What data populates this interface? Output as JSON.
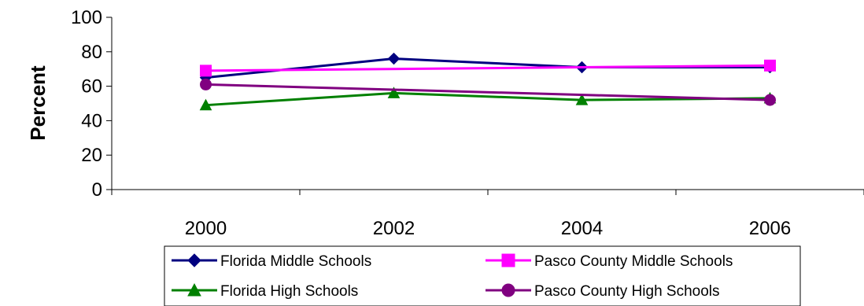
{
  "chart_data": {
    "type": "line",
    "title": "",
    "xlabel": "",
    "ylabel": "Percent",
    "categories": [
      "2000",
      "2002",
      "2004",
      "2006"
    ],
    "ylim": [
      0,
      100
    ],
    "yticks": [
      0,
      20,
      40,
      60,
      80,
      100
    ],
    "grid": false,
    "legend_position": "bottom",
    "series": [
      {
        "name": "Florida Middle Schools",
        "values": [
          65,
          76,
          71,
          71
        ],
        "color": "#000080",
        "marker": "diamond"
      },
      {
        "name": "Pasco County Middle Schools",
        "values": [
          69,
          null,
          null,
          72
        ],
        "color": "#ff00ff",
        "marker": "square"
      },
      {
        "name": "Florida High Schools",
        "values": [
          49,
          56,
          52,
          53
        ],
        "color": "#008000",
        "marker": "triangle"
      },
      {
        "name": "Pasco County High Schools",
        "values": [
          61,
          null,
          null,
          52
        ],
        "color": "#800080",
        "marker": "circle"
      }
    ]
  }
}
